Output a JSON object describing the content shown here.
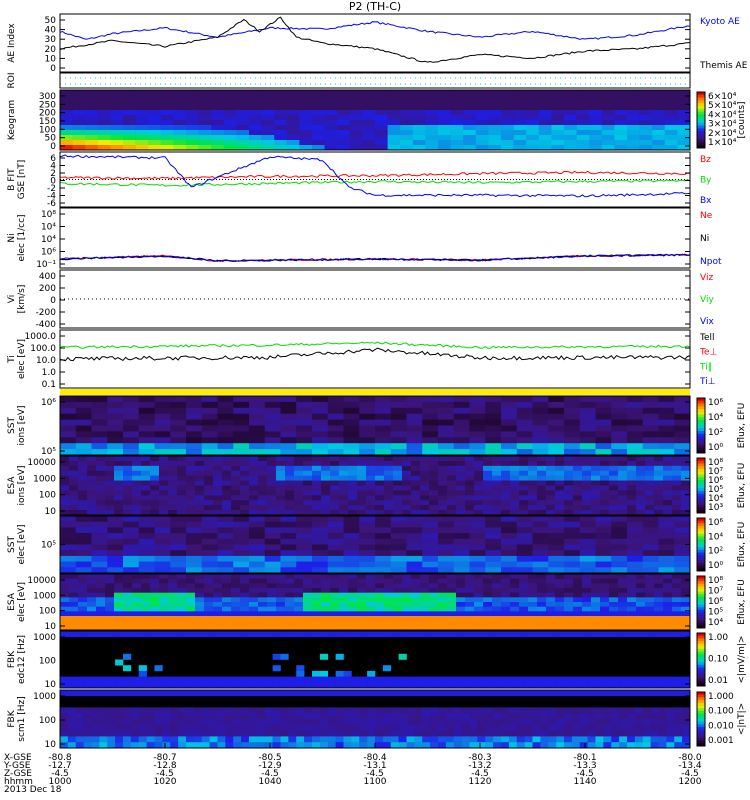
{
  "title": "P2 (TH-C)",
  "chart_data": {
    "type": "line",
    "time_axis": {
      "label": "hhmm",
      "ticks": [
        "1000",
        "1020",
        "1040",
        "1100",
        "1120",
        "1140",
        "1200"
      ],
      "date": "2013 Dec 18",
      "x_gse": [
        "-80.8",
        "-80.7",
        "-80.5",
        "-80.4",
        "-80.3",
        "-80.1",
        "-80.0"
      ],
      "y_gse": [
        "-12.7",
        "-12.8",
        "-12.9",
        "-13.1",
        "-13.2",
        "-13.3",
        "-13.4"
      ],
      "z_gse": [
        "-4.5",
        "-4.5",
        "-4.5",
        "-4.5",
        "-4.5",
        "-4.5",
        "-4.5"
      ],
      "row_labels": [
        "X-GSE",
        "Y-GSE",
        "Z-GSE",
        "hhmm"
      ]
    },
    "panels": [
      {
        "id": "ae",
        "ylabel": "AE Index",
        "ticks": [
          "50",
          "40",
          "30",
          "20",
          "10",
          "0"
        ],
        "ylim": [
          0,
          50
        ],
        "series": [
          {
            "name": "Kyoto AE",
            "color": "#0000ff",
            "t": [
              0,
              5,
              10,
              20,
              30,
              40,
              50,
              60,
              70,
              80,
              90,
              100,
              110,
              120
            ],
            "values": [
              35,
              28,
              33,
              38,
              30,
              38,
              37,
              43,
              35,
              30,
              35,
              28,
              32,
              40
            ]
          },
          {
            "name": "Themis AE",
            "color": "#000000",
            "t": [
              0,
              10,
              20,
              30,
              35,
              38,
              42,
              45,
              50,
              60,
              70,
              80,
              90,
              100,
              110,
              120
            ],
            "values": [
              20,
              27,
              22,
              30,
              45,
              35,
              47,
              30,
              25,
              20,
              8,
              15,
              12,
              18,
              20,
              25
            ]
          }
        ]
      },
      {
        "id": "roi",
        "ylabel": "ROI"
      },
      {
        "id": "keogram",
        "ylabel": "Keogram",
        "ticks": [
          "300",
          "250",
          "200",
          "150",
          "100",
          "50",
          "0"
        ],
        "colorbar": [
          "6×10⁴",
          "5×10⁴",
          "4×10⁴",
          "3×10⁴",
          "2×10⁴",
          "1×10⁴"
        ],
        "colorbar_label": "[counts]"
      },
      {
        "id": "bfit",
        "ylabel": "B FIT",
        "units": "GSE [nT]",
        "ticks": [
          "6",
          "4",
          "2",
          "0",
          "-2",
          "-4",
          "-6"
        ],
        "ylim": [
          -7,
          7
        ],
        "series": [
          {
            "name": "Bz",
            "color": "#ff0000",
            "t": [
              0,
              20,
              40,
              60,
              80,
              100,
              120
            ],
            "values": [
              0.5,
              0.3,
              0.8,
              1.0,
              1.5,
              1.8,
              1.5
            ]
          },
          {
            "name": "By",
            "color": "#00dd00",
            "t": [
              0,
              20,
              40,
              60,
              80,
              100,
              120
            ],
            "values": [
              -1,
              -1.5,
              -1,
              -0.5,
              -0.8,
              -0.5,
              -0.3
            ]
          },
          {
            "name": "Bx",
            "color": "#0000ff",
            "t": [
              0,
              20,
              25,
              40,
              50,
              55,
              60,
              80,
              100,
              120
            ],
            "values": [
              6,
              5.5,
              -2,
              5.8,
              5,
              -2,
              -4,
              -4,
              -4.2,
              -3.5
            ]
          }
        ]
      },
      {
        "id": "ni",
        "ylabel": "Ni",
        "units": "elec [1/cc]",
        "ticks": [
          "10⁸",
          "10⁴",
          "10⁴",
          "10⁶",
          "10⁻¹"
        ],
        "series": [
          {
            "name": "Ne",
            "color": "#ff0000"
          },
          {
            "name": "Ni",
            "color": "#000000"
          },
          {
            "name": "Npot",
            "color": "#0000ff"
          }
        ]
      },
      {
        "id": "vi",
        "ylabel": "Vi",
        "units": "[km/s]",
        "ticks": [
          "400",
          "200",
          "0",
          "-200",
          "-400"
        ],
        "series": [
          {
            "name": "Viz",
            "color": "#ff0000"
          },
          {
            "name": "Viy",
            "color": "#00dd00"
          },
          {
            "name": "Vix",
            "color": "#0000ff"
          }
        ]
      },
      {
        "id": "ti",
        "ylabel": "Ti",
        "units": "elec [eV]",
        "ticks": [
          "1000.0",
          "100.0",
          "10.0",
          "1.0",
          "0.1"
        ],
        "series": [
          {
            "name": "Tell",
            "color": "#000000"
          },
          {
            "name": "Te⊥",
            "color": "#ff0000"
          },
          {
            "name": "Ti‖",
            "color": "#00dd00"
          },
          {
            "name": "Ti⊥",
            "color": "#0000ff"
          }
        ]
      },
      {
        "id": "sst_ion",
        "ylabel": "SST",
        "units": "ions [eV]",
        "ticks": [
          "10⁶",
          "10⁵"
        ],
        "colorbar": [
          "10⁶",
          "10⁴",
          "10²",
          "10⁰"
        ],
        "colorbar_label": "Eflux, EFU"
      },
      {
        "id": "esa_ion",
        "ylabel": "ESA",
        "units": "ions [eV]",
        "ticks": [
          "10000",
          "1000",
          "100",
          "10"
        ],
        "colorbar": [
          "10⁸",
          "10⁷",
          "10⁶",
          "10⁵",
          "10⁴",
          "10³"
        ],
        "colorbar_label": "Eflux, EFU"
      },
      {
        "id": "sst_elec",
        "ylabel": "SST",
        "units": "elec [eV]",
        "ticks": [
          "10⁵"
        ],
        "colorbar": [
          "10⁶",
          "10⁴",
          "10²",
          "10⁰"
        ],
        "colorbar_label": "Eflux, EFU"
      },
      {
        "id": "esa_elec",
        "ylabel": "ESA",
        "units": "elec [eV]",
        "ticks": [
          "10000",
          "1000",
          "100",
          "10"
        ],
        "colorbar": [
          "10⁸",
          "10⁷",
          "10⁶",
          "10⁵",
          "10⁴"
        ],
        "colorbar_label": "Eflux, EFU"
      },
      {
        "id": "fbk_edc12",
        "ylabel": "FBK",
        "units": "edc12 [Hz]",
        "ticks": [
          "1000",
          "100",
          "10"
        ],
        "colorbar": [
          "1.00",
          "0.10",
          "0.01"
        ],
        "colorbar_label": "<|mV/m|>"
      },
      {
        "id": "fbk_scm1",
        "ylabel": "FBK",
        "units": "scm1 [Hz]",
        "ticks": [
          "1000",
          "100",
          "10"
        ],
        "colorbar": [
          "1.000",
          "0.100",
          "0.010",
          "0.001"
        ],
        "colorbar_label": "<|nT|>"
      }
    ]
  }
}
